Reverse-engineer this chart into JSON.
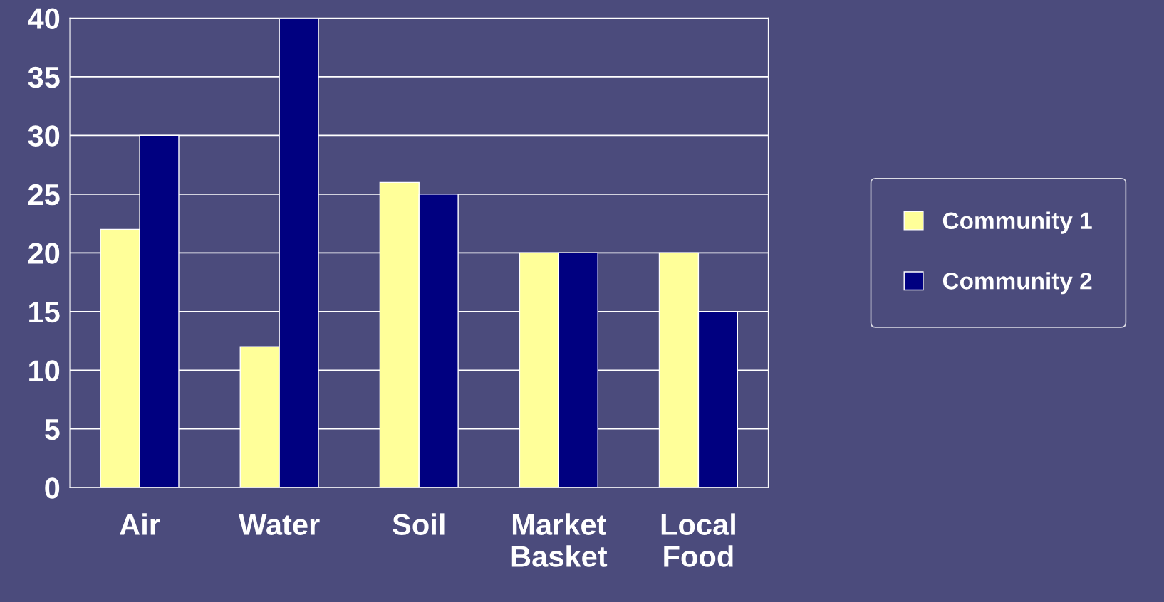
{
  "chart_data": {
    "type": "bar",
    "categories": [
      "Air",
      "Water",
      "Soil",
      "Market\nBasket",
      "Local\nFood"
    ],
    "series": [
      {
        "name": "Community 1",
        "color": "#ffff99",
        "values": [
          22,
          12,
          26,
          20,
          20
        ]
      },
      {
        "name": "Community 2",
        "color": "#000080",
        "values": [
          30,
          40,
          25,
          20,
          15
        ]
      }
    ],
    "ylim": [
      0,
      40
    ],
    "yticks": [
      0,
      5,
      10,
      15,
      20,
      25,
      30,
      35,
      40
    ],
    "grid": "y",
    "legend": "right"
  }
}
